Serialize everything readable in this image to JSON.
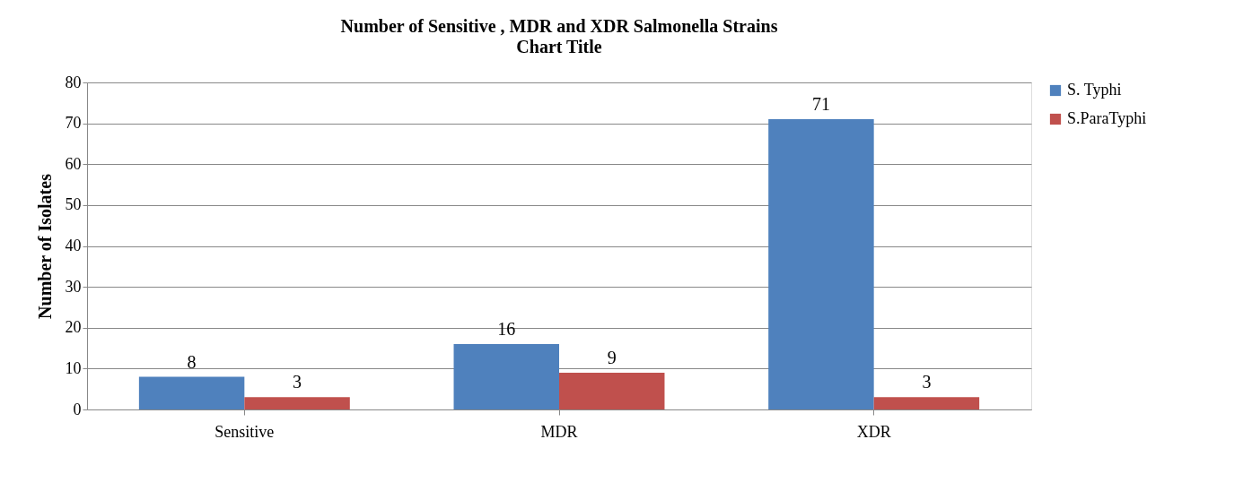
{
  "chart_data": {
    "type": "bar",
    "title": "Number of Sensitive , MDR and XDR Salmonella Strains",
    "subtitle": "Chart Title",
    "ylabel": "Number of Isolates",
    "categories": [
      "Sensitive",
      "MDR",
      "XDR"
    ],
    "series": [
      {
        "name": "S. Typhi",
        "color": "#4f81bd",
        "values": [
          8,
          16,
          71
        ]
      },
      {
        "name": "S.ParaTyphi",
        "color": "#c0504d",
        "values": [
          3,
          9,
          3
        ]
      }
    ],
    "ylim": [
      0,
      80
    ],
    "yticks": [
      0,
      10,
      20,
      30,
      40,
      50,
      60,
      70,
      80
    ],
    "grid": "y",
    "legend": "right",
    "data_labels": true
  }
}
